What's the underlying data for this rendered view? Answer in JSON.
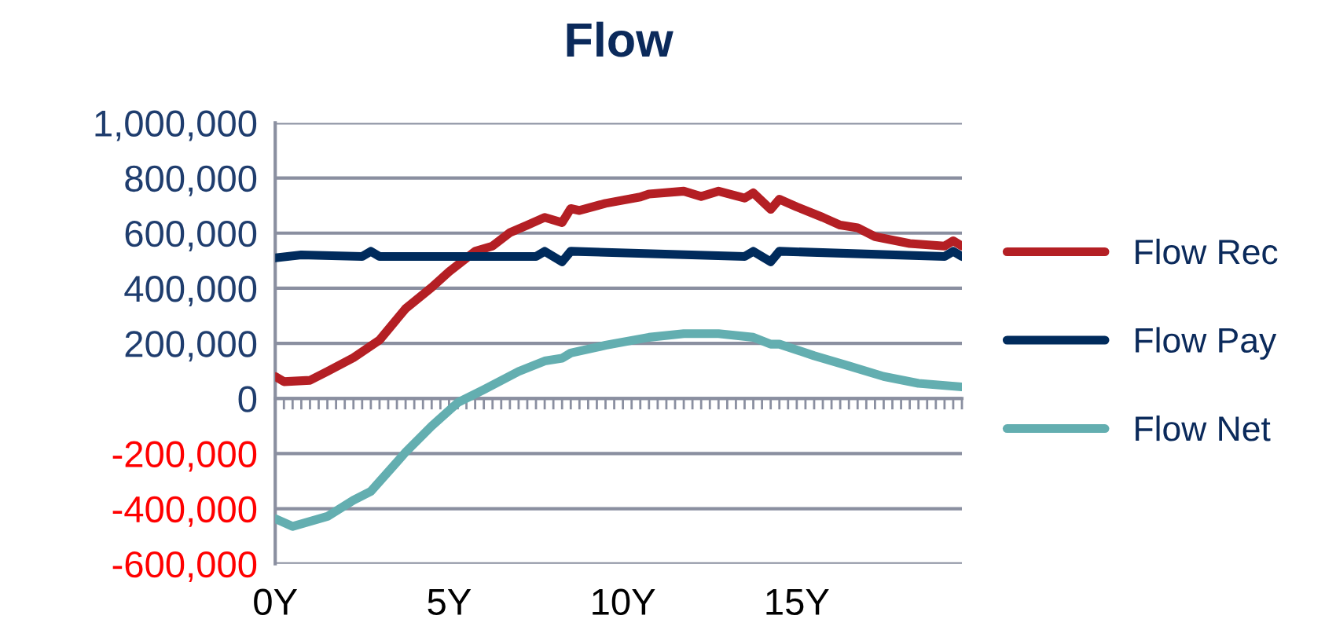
{
  "chart_data": {
    "type": "line",
    "title": "Flow",
    "series": [
      {
        "name": "Flow Rec",
        "color": "#b41f24",
        "x": [
          0,
          0.25,
          1.0,
          1.5,
          2.25,
          3.0,
          3.75,
          4.5,
          5.0,
          5.75,
          6.25,
          6.75,
          7.25,
          7.75,
          8.25,
          8.5,
          8.75,
          9.5,
          10.5,
          10.75,
          11.75,
          12.25,
          12.75,
          13.5,
          13.75,
          14.25,
          14.5,
          15.0,
          15.75,
          16.25,
          16.75,
          17.25,
          18.25,
          19.25,
          19.5,
          19.75
        ],
        "values": [
          80000,
          61000,
          66000,
          98000,
          148000,
          212000,
          326000,
          403000,
          460000,
          534000,
          553000,
          602000,
          629000,
          657000,
          638000,
          689000,
          682000,
          708000,
          731000,
          742000,
          752000,
          733000,
          752000,
          727000,
          746000,
          686000,
          723000,
          695000,
          657000,
          629000,
          619000,
          587000,
          562000,
          553000,
          572000,
          553000
        ]
      },
      {
        "name": "Flow Pay",
        "color": "#002b5c",
        "x": [
          0,
          0.75,
          2.5,
          2.75,
          3.0,
          7.5,
          7.75,
          8.25,
          8.5,
          13.5,
          13.75,
          14.25,
          14.5,
          19.25,
          19.5,
          19.75
        ],
        "values": [
          510000,
          521000,
          515000,
          534000,
          515000,
          515000,
          534000,
          496000,
          534000,
          515000,
          534000,
          496000,
          534000,
          515000,
          534000,
          515000
        ]
      },
      {
        "name": "Flow Net",
        "color": "#63aeb0",
        "x": [
          0,
          0.5,
          1.5,
          2.25,
          2.75,
          3.75,
          4.5,
          5.25,
          6.0,
          7.0,
          7.75,
          8.25,
          8.5,
          9.5,
          10.75,
          11.75,
          12.75,
          13.75,
          14.25,
          14.5,
          15.5,
          16.5,
          17.5,
          18.5,
          19.75
        ],
        "values": [
          -436000,
          -464000,
          -428000,
          -369000,
          -337000,
          -195000,
          -100000,
          -15000,
          32000,
          98000,
          136000,
          146000,
          165000,
          193000,
          222000,
          235000,
          235000,
          222000,
          197000,
          197000,
          155000,
          118000,
          80000,
          55000,
          42000
        ]
      }
    ],
    "xlim": [
      0,
      19.75
    ],
    "xticks": [
      {
        "value": 0,
        "label": "0Y"
      },
      {
        "value": 0.25,
        "label": null
      },
      {
        "value": 0.5,
        "label": null
      },
      {
        "value": 0.75,
        "label": null
      },
      {
        "value": 1,
        "label": null
      },
      {
        "value": 1.25,
        "label": null
      },
      {
        "value": 1.5,
        "label": null
      },
      {
        "value": 1.75,
        "label": null
      },
      {
        "value": 2,
        "label": null
      },
      {
        "value": 2.25,
        "label": null
      },
      {
        "value": 2.5,
        "label": null
      },
      {
        "value": 2.75,
        "label": null
      },
      {
        "value": 3,
        "label": null
      },
      {
        "value": 3.25,
        "label": null
      },
      {
        "value": 3.5,
        "label": null
      },
      {
        "value": 3.75,
        "label": null
      },
      {
        "value": 4,
        "label": null
      },
      {
        "value": 4.25,
        "label": null
      },
      {
        "value": 4.5,
        "label": null
      },
      {
        "value": 4.75,
        "label": null
      },
      {
        "value": 5,
        "label": "5Y"
      },
      {
        "value": 5.25,
        "label": null
      },
      {
        "value": 5.5,
        "label": null
      },
      {
        "value": 5.75,
        "label": null
      },
      {
        "value": 6,
        "label": null
      },
      {
        "value": 6.25,
        "label": null
      },
      {
        "value": 6.5,
        "label": null
      },
      {
        "value": 6.75,
        "label": null
      },
      {
        "value": 7,
        "label": null
      },
      {
        "value": 7.25,
        "label": null
      },
      {
        "value": 7.5,
        "label": null
      },
      {
        "value": 7.75,
        "label": null
      },
      {
        "value": 8,
        "label": null
      },
      {
        "value": 8.25,
        "label": null
      },
      {
        "value": 8.5,
        "label": null
      },
      {
        "value": 8.75,
        "label": null
      },
      {
        "value": 9,
        "label": null
      },
      {
        "value": 9.25,
        "label": null
      },
      {
        "value": 9.5,
        "label": null
      },
      {
        "value": 9.75,
        "label": null
      },
      {
        "value": 10,
        "label": "10Y"
      },
      {
        "value": 10.25,
        "label": null
      },
      {
        "value": 10.5,
        "label": null
      },
      {
        "value": 10.75,
        "label": null
      },
      {
        "value": 11,
        "label": null
      },
      {
        "value": 11.25,
        "label": null
      },
      {
        "value": 11.5,
        "label": null
      },
      {
        "value": 11.75,
        "label": null
      },
      {
        "value": 12,
        "label": null
      },
      {
        "value": 12.25,
        "label": null
      },
      {
        "value": 12.5,
        "label": null
      },
      {
        "value": 12.75,
        "label": null
      },
      {
        "value": 13,
        "label": null
      },
      {
        "value": 13.25,
        "label": null
      },
      {
        "value": 13.5,
        "label": null
      },
      {
        "value": 13.75,
        "label": null
      },
      {
        "value": 14,
        "label": null
      },
      {
        "value": 14.25,
        "label": null
      },
      {
        "value": 14.5,
        "label": null
      },
      {
        "value": 14.75,
        "label": null
      },
      {
        "value": 15,
        "label": "15Y"
      },
      {
        "value": 15.25,
        "label": null
      },
      {
        "value": 15.5,
        "label": null
      },
      {
        "value": 15.75,
        "label": null
      },
      {
        "value": 16,
        "label": null
      },
      {
        "value": 16.25,
        "label": null
      },
      {
        "value": 16.5,
        "label": null
      },
      {
        "value": 16.75,
        "label": null
      },
      {
        "value": 17,
        "label": null
      },
      {
        "value": 17.25,
        "label": null
      },
      {
        "value": 17.5,
        "label": null
      },
      {
        "value": 17.75,
        "label": null
      },
      {
        "value": 18,
        "label": null
      },
      {
        "value": 18.25,
        "label": null
      },
      {
        "value": 18.5,
        "label": null
      },
      {
        "value": 18.75,
        "label": null
      },
      {
        "value": 19,
        "label": null
      },
      {
        "value": 19.25,
        "label": null
      },
      {
        "value": 19.5,
        "label": null
      },
      {
        "value": 19.75,
        "label": null
      }
    ],
    "ylim": [
      -600000,
      1000000
    ],
    "yticks": [
      {
        "value": -600000,
        "label": "-600,000"
      },
      {
        "value": -400000,
        "label": "-400,000"
      },
      {
        "value": -200000,
        "label": "-200,000"
      },
      0,
      {
        "value": 200000,
        "label": "200,000"
      },
      {
        "value": 400000,
        "label": "400,000"
      },
      {
        "value": 600000,
        "label": "600,000"
      },
      {
        "value": 800000,
        "label": "800,000"
      },
      {
        "value": 1000000,
        "label": "1,000,000"
      }
    ],
    "grid": "y",
    "legend": "right",
    "marker": "none",
    "line_style": "solid"
  }
}
